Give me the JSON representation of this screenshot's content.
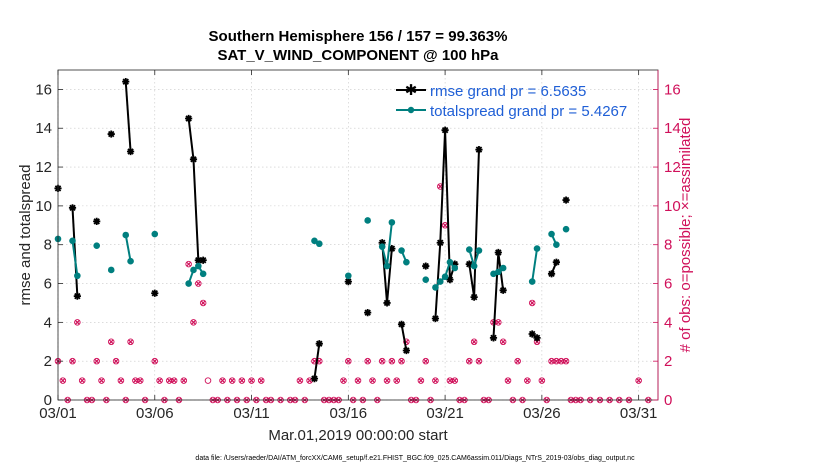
{
  "chart_data": {
    "type": "line",
    "title_line1": "Southern Hemisphere 156 / 157 = 99.363%",
    "title_line2": "SAT_V_WIND_COMPONENT @ 100 hPa",
    "xlabel": "Mar.01,2019 00:00:00 start",
    "ylabel": "rmse and totalspread",
    "y2label": "# of obs: o=possible; ×=assimilated",
    "xlim": [
      1,
      32
    ],
    "ylim": [
      0,
      17
    ],
    "y2lim": [
      0,
      17
    ],
    "x_ticks": [
      1,
      6,
      11,
      16,
      21,
      26,
      31
    ],
    "x_tick_labels": [
      "03/01",
      "03/06",
      "03/11",
      "03/16",
      "03/21",
      "03/26",
      "03/31"
    ],
    "y_ticks": [
      0,
      2,
      4,
      6,
      8,
      10,
      12,
      14,
      16
    ],
    "y_tick_labels": [
      "0",
      "2",
      "4",
      "6",
      "8",
      "10",
      "12",
      "14",
      "16"
    ],
    "y2_tick_labels": [
      "0",
      "2",
      "4",
      "6",
      "8",
      "10",
      "12",
      "14",
      "16"
    ],
    "grid": true,
    "legend_position": "top-right",
    "footnote": "data file: /Users/raeder/DAI/ATM_forcXX/CAM6_setup/f.e21.FHIST_BGC.f09_025.CAM6assim.011/Diags_NTrS_2019-03/obs_diag_output.nc",
    "series": [
      {
        "name": "rmse",
        "legend_label": "rmse grand pr = 6.5635",
        "color": "#000000",
        "segments": [
          [
            [
              1.0,
              10.9
            ]
          ],
          [
            [
              1.75,
              9.9
            ],
            [
              2.0,
              5.35
            ]
          ],
          [
            [
              3.0,
              9.2
            ]
          ],
          [
            [
              3.75,
              13.7
            ]
          ],
          [
            [
              4.5,
              16.4
            ],
            [
              4.75,
              12.8
            ]
          ],
          [
            [
              6.0,
              5.5
            ]
          ],
          [
            [
              7.75,
              14.5
            ],
            [
              8.0,
              12.4
            ],
            [
              8.25,
              7.2
            ],
            [
              8.5,
              7.2
            ]
          ],
          [
            [
              14.25,
              1.1
            ],
            [
              14.5,
              2.9
            ]
          ],
          [
            [
              16.0,
              6.1
            ]
          ],
          [
            [
              17.0,
              4.5
            ]
          ],
          [
            [
              17.75,
              8.1
            ],
            [
              18.0,
              5.0
            ],
            [
              18.25,
              7.8
            ]
          ],
          [
            [
              18.75,
              3.9
            ],
            [
              19.0,
              2.55
            ]
          ],
          [
            [
              20.0,
              6.9
            ]
          ],
          [
            [
              20.5,
              4.2
            ],
            [
              20.75,
              8.1
            ],
            [
              21.0,
              13.9
            ],
            [
              21.25,
              6.2
            ],
            [
              21.5,
              7.0
            ]
          ],
          [
            [
              22.25,
              7.0
            ],
            [
              22.5,
              5.3
            ],
            [
              22.75,
              12.9
            ]
          ],
          [
            [
              23.5,
              3.2
            ],
            [
              23.75,
              7.6
            ],
            [
              24.0,
              5.65
            ]
          ],
          [
            [
              25.5,
              3.4
            ],
            [
              25.75,
              3.2
            ]
          ],
          [
            [
              26.5,
              6.5
            ],
            [
              26.75,
              7.1
            ]
          ],
          [
            [
              27.25,
              10.3
            ]
          ]
        ]
      },
      {
        "name": "totalspread",
        "legend_label": "totalspread grand pr = 5.4267",
        "color": "#007f7f",
        "segments": [
          [
            [
              1.0,
              8.3
            ]
          ],
          [
            [
              1.75,
              8.2
            ],
            [
              2.0,
              6.4
            ]
          ],
          [
            [
              3.0,
              7.95
            ]
          ],
          [
            [
              3.75,
              6.7
            ]
          ],
          [
            [
              4.5,
              8.5
            ],
            [
              4.75,
              7.15
            ]
          ],
          [
            [
              6.0,
              8.55
            ]
          ],
          [
            [
              7.75,
              6.0
            ],
            [
              8.0,
              6.7
            ],
            [
              8.25,
              6.9
            ],
            [
              8.5,
              6.5
            ]
          ],
          [
            [
              14.25,
              8.2
            ],
            [
              14.5,
              8.05
            ]
          ],
          [
            [
              16.0,
              6.4
            ]
          ],
          [
            [
              17.0,
              9.25
            ]
          ],
          [
            [
              17.75,
              7.9
            ],
            [
              18.0,
              6.9
            ],
            [
              18.25,
              9.15
            ]
          ],
          [
            [
              18.75,
              7.7
            ],
            [
              19.0,
              7.1
            ]
          ],
          [
            [
              20.0,
              6.2
            ]
          ],
          [
            [
              20.5,
              5.8
            ],
            [
              20.75,
              6.1
            ],
            [
              21.0,
              6.35
            ],
            [
              21.25,
              7.1
            ],
            [
              21.5,
              6.8
            ]
          ],
          [
            [
              22.25,
              7.75
            ],
            [
              22.5,
              6.9
            ],
            [
              22.75,
              7.7
            ]
          ],
          [
            [
              23.5,
              6.5
            ],
            [
              23.75,
              6.6
            ],
            [
              24.0,
              6.8
            ]
          ],
          [
            [
              25.5,
              6.1
            ],
            [
              25.75,
              7.8
            ]
          ],
          [
            [
              26.5,
              8.55
            ],
            [
              26.75,
              8.0
            ]
          ],
          [
            [
              27.25,
              8.8
            ]
          ]
        ]
      }
    ],
    "obs_counts": {
      "color": "#d0105a",
      "possible": [
        [
          1.0,
          2
        ],
        [
          1.25,
          1
        ],
        [
          1.5,
          0
        ],
        [
          1.75,
          2
        ],
        [
          2.0,
          4
        ],
        [
          2.25,
          1
        ],
        [
          2.5,
          0
        ],
        [
          2.75,
          0
        ],
        [
          3.0,
          2
        ],
        [
          3.25,
          1
        ],
        [
          3.5,
          0
        ],
        [
          3.75,
          3
        ],
        [
          4.0,
          2
        ],
        [
          4.25,
          1
        ],
        [
          4.5,
          0
        ],
        [
          4.75,
          3
        ],
        [
          5.0,
          1
        ],
        [
          5.25,
          1
        ],
        [
          5.5,
          0
        ],
        [
          6.0,
          2
        ],
        [
          6.25,
          1
        ],
        [
          6.5,
          0
        ],
        [
          6.75,
          1
        ],
        [
          7.0,
          1
        ],
        [
          7.25,
          0
        ],
        [
          7.5,
          1
        ],
        [
          7.75,
          7
        ],
        [
          8.0,
          4
        ],
        [
          8.25,
          6
        ],
        [
          8.5,
          5
        ],
        [
          8.75,
          1
        ],
        [
          9.0,
          0
        ],
        [
          9.25,
          0
        ],
        [
          9.5,
          1
        ],
        [
          9.75,
          0
        ],
        [
          10.0,
          1
        ],
        [
          10.25,
          0
        ],
        [
          10.5,
          1
        ],
        [
          10.75,
          0
        ],
        [
          11.0,
          1
        ],
        [
          11.25,
          0
        ],
        [
          11.5,
          1
        ],
        [
          11.75,
          0
        ],
        [
          12.0,
          0
        ],
        [
          12.5,
          0
        ],
        [
          13.0,
          0
        ],
        [
          13.25,
          0
        ],
        [
          13.5,
          1
        ],
        [
          13.75,
          0
        ],
        [
          14.0,
          1
        ],
        [
          14.25,
          2
        ],
        [
          14.5,
          2
        ],
        [
          14.75,
          0
        ],
        [
          15.0,
          0
        ],
        [
          15.25,
          0
        ],
        [
          15.5,
          0
        ],
        [
          15.75,
          1
        ],
        [
          16.0,
          2
        ],
        [
          16.25,
          0
        ],
        [
          16.5,
          1
        ],
        [
          16.75,
          0
        ],
        [
          17.0,
          2
        ],
        [
          17.25,
          1
        ],
        [
          17.5,
          0
        ],
        [
          17.75,
          2
        ],
        [
          18.0,
          1
        ],
        [
          18.25,
          2
        ],
        [
          18.5,
          1
        ],
        [
          18.75,
          2
        ],
        [
          19.0,
          3
        ],
        [
          19.25,
          0
        ],
        [
          19.5,
          0
        ],
        [
          19.75,
          1
        ],
        [
          20.0,
          2
        ],
        [
          20.25,
          0
        ],
        [
          20.5,
          1
        ],
        [
          20.75,
          11
        ],
        [
          21.0,
          9
        ],
        [
          21.25,
          1
        ],
        [
          21.5,
          1
        ],
        [
          21.75,
          0
        ],
        [
          22.0,
          0
        ],
        [
          22.25,
          2
        ],
        [
          22.5,
          3
        ],
        [
          22.75,
          2
        ],
        [
          23.0,
          0
        ],
        [
          23.25,
          0
        ],
        [
          23.5,
          4
        ],
        [
          23.75,
          4
        ],
        [
          24.0,
          3
        ],
        [
          24.25,
          1
        ],
        [
          24.5,
          0
        ],
        [
          24.75,
          2
        ],
        [
          25.0,
          0
        ],
        [
          25.25,
          1
        ],
        [
          25.5,
          5
        ],
        [
          25.75,
          3
        ],
        [
          26.0,
          1
        ],
        [
          26.25,
          0
        ],
        [
          26.5,
          2
        ],
        [
          26.75,
          2
        ],
        [
          27.0,
          2
        ],
        [
          27.25,
          2
        ],
        [
          27.5,
          0
        ],
        [
          27.75,
          0
        ],
        [
          28.0,
          0
        ],
        [
          28.5,
          0
        ],
        [
          29.0,
          0
        ],
        [
          29.5,
          0
        ],
        [
          30.0,
          0
        ],
        [
          30.5,
          0
        ],
        [
          31.0,
          1
        ],
        [
          31.5,
          0
        ]
      ],
      "assimilated": [
        [
          1.0,
          2
        ],
        [
          1.25,
          1
        ],
        [
          1.5,
          0
        ],
        [
          1.75,
          2
        ],
        [
          2.0,
          4
        ],
        [
          2.25,
          1
        ],
        [
          2.5,
          0
        ],
        [
          2.75,
          0
        ],
        [
          3.0,
          2
        ],
        [
          3.25,
          1
        ],
        [
          3.5,
          0
        ],
        [
          3.75,
          3
        ],
        [
          4.0,
          2
        ],
        [
          4.25,
          1
        ],
        [
          4.5,
          0
        ],
        [
          4.75,
          3
        ],
        [
          5.0,
          1
        ],
        [
          5.25,
          1
        ],
        [
          5.5,
          0
        ],
        [
          6.0,
          2
        ],
        [
          6.25,
          1
        ],
        [
          6.5,
          0
        ],
        [
          6.75,
          1
        ],
        [
          7.0,
          1
        ],
        [
          7.25,
          0
        ],
        [
          7.5,
          1
        ],
        [
          7.75,
          7
        ],
        [
          8.0,
          4
        ],
        [
          8.25,
          6
        ],
        [
          8.5,
          5
        ],
        [
          9.0,
          0
        ],
        [
          9.25,
          0
        ],
        [
          9.5,
          1
        ],
        [
          9.75,
          0
        ],
        [
          10.0,
          1
        ],
        [
          10.25,
          0
        ],
        [
          10.5,
          1
        ],
        [
          10.75,
          0
        ],
        [
          11.0,
          1
        ],
        [
          11.25,
          0
        ],
        [
          11.5,
          1
        ],
        [
          11.75,
          0
        ],
        [
          12.0,
          0
        ],
        [
          12.5,
          0
        ],
        [
          13.0,
          0
        ],
        [
          13.25,
          0
        ],
        [
          13.5,
          1
        ],
        [
          13.75,
          0
        ],
        [
          14.0,
          1
        ],
        [
          14.25,
          2
        ],
        [
          14.5,
          2
        ],
        [
          14.75,
          0
        ],
        [
          15.0,
          0
        ],
        [
          15.25,
          0
        ],
        [
          15.5,
          0
        ],
        [
          15.75,
          1
        ],
        [
          16.0,
          2
        ],
        [
          16.25,
          0
        ],
        [
          16.5,
          1
        ],
        [
          16.75,
          0
        ],
        [
          17.0,
          2
        ],
        [
          17.25,
          1
        ],
        [
          17.5,
          0
        ],
        [
          17.75,
          2
        ],
        [
          18.0,
          1
        ],
        [
          18.25,
          2
        ],
        [
          18.5,
          1
        ],
        [
          18.75,
          2
        ],
        [
          19.0,
          3
        ],
        [
          19.25,
          0
        ],
        [
          19.5,
          0
        ],
        [
          19.75,
          1
        ],
        [
          20.0,
          2
        ],
        [
          20.25,
          0
        ],
        [
          20.5,
          1
        ],
        [
          20.75,
          11
        ],
        [
          21.0,
          9
        ],
        [
          21.25,
          1
        ],
        [
          21.5,
          1
        ],
        [
          21.75,
          0
        ],
        [
          22.0,
          0
        ],
        [
          22.25,
          2
        ],
        [
          22.5,
          3
        ],
        [
          22.75,
          2
        ],
        [
          23.0,
          0
        ],
        [
          23.25,
          0
        ],
        [
          23.5,
          4
        ],
        [
          23.75,
          4
        ],
        [
          24.0,
          3
        ],
        [
          24.25,
          1
        ],
        [
          24.5,
          0
        ],
        [
          24.75,
          2
        ],
        [
          25.0,
          0
        ],
        [
          25.25,
          1
        ],
        [
          25.5,
          5
        ],
        [
          25.75,
          3
        ],
        [
          26.0,
          1
        ],
        [
          26.25,
          0
        ],
        [
          26.5,
          2
        ],
        [
          26.75,
          2
        ],
        [
          27.0,
          2
        ],
        [
          27.25,
          2
        ],
        [
          27.5,
          0
        ],
        [
          27.75,
          0
        ],
        [
          28.0,
          0
        ],
        [
          28.5,
          0
        ],
        [
          29.0,
          0
        ],
        [
          29.5,
          0
        ],
        [
          30.0,
          0
        ],
        [
          30.5,
          0
        ],
        [
          31.0,
          1
        ],
        [
          31.5,
          0
        ]
      ]
    }
  }
}
